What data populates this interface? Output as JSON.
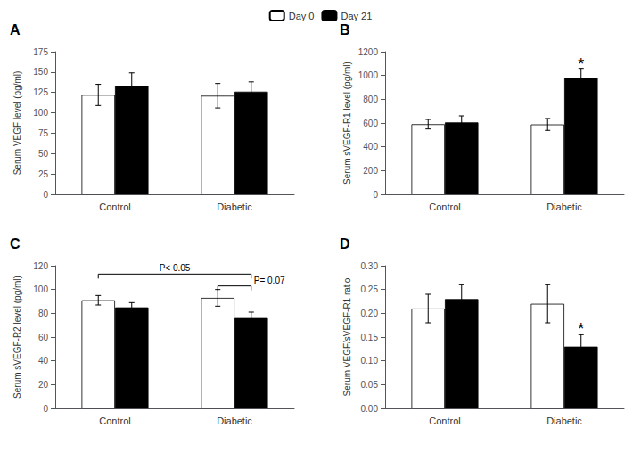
{
  "chart_data": [
    {
      "type": "bar",
      "title": "A",
      "ylabel": "Serum VEGF level (pg/ml)",
      "categories": [
        "Control",
        "Diabetic"
      ],
      "series": [
        {
          "name": "Day 0",
          "color": "#ffffff",
          "values": [
            122,
            121
          ],
          "errors": [
            13,
            15
          ]
        },
        {
          "name": "Day 21",
          "color": "#000000",
          "values": [
            133,
            126
          ],
          "errors": [
            16,
            12
          ]
        }
      ],
      "ylim": [
        0,
        175
      ],
      "yticks": [
        0,
        25,
        50,
        75,
        100,
        125,
        150,
        175
      ],
      "grid": false,
      "legend": "top",
      "annotations": []
    },
    {
      "type": "bar",
      "title": "B",
      "ylabel": "Serum sVEGF-R1 level (pg/ml)",
      "categories": [
        "Control",
        "Diabetic"
      ],
      "series": [
        {
          "name": "Day 0",
          "color": "#ffffff",
          "values": [
            590,
            588
          ],
          "errors": [
            40,
            50
          ]
        },
        {
          "name": "Day 21",
          "color": "#000000",
          "values": [
            605,
            980
          ],
          "errors": [
            55,
            80
          ]
        }
      ],
      "ylim": [
        0,
        1200
      ],
      "yticks": [
        0,
        200,
        400,
        600,
        800,
        1000,
        1200
      ],
      "grid": false,
      "annotations": [
        {
          "text": "*",
          "category": "Diabetic",
          "series": "Day 21",
          "y": 1075
        }
      ]
    },
    {
      "type": "bar",
      "title": "C",
      "ylabel": "Serum sVEGF-R2 level (pg/ml)",
      "categories": [
        "Control",
        "Diabetic"
      ],
      "series": [
        {
          "name": "Day 0",
          "color": "#ffffff",
          "values": [
            91,
            93
          ],
          "errors": [
            4,
            7
          ]
        },
        {
          "name": "Day 21",
          "color": "#000000",
          "values": [
            85,
            76
          ],
          "errors": [
            4,
            5
          ]
        }
      ],
      "ylim": [
        0,
        120
      ],
      "yticks": [
        0,
        20,
        40,
        60,
        80,
        100,
        120
      ],
      "grid": false,
      "annotations": [],
      "brackets": [
        {
          "from": {
            "category": "Control",
            "series": "Day 0"
          },
          "to": {
            "category": "Diabetic",
            "series": "Day 21"
          },
          "y": 113,
          "label": "P< 0.05"
        },
        {
          "from": {
            "category": "Diabetic",
            "series": "Day 0"
          },
          "to": {
            "category": "Diabetic",
            "series": "Day 21"
          },
          "y": 103,
          "label": "P= 0.07"
        }
      ]
    },
    {
      "type": "bar",
      "title": "D",
      "ylabel": "Serum VEGF/sVEGF-R1 ratio",
      "categories": [
        "Control",
        "Diabetic"
      ],
      "series": [
        {
          "name": "Day 0",
          "color": "#ffffff",
          "values": [
            0.21,
            0.22
          ],
          "errors": [
            0.03,
            0.04
          ]
        },
        {
          "name": "Day 21",
          "color": "#000000",
          "values": [
            0.23,
            0.13
          ],
          "errors": [
            0.03,
            0.025
          ]
        }
      ],
      "ylim": [
        0,
        0.3
      ],
      "yticks": [
        {
          "value": 0,
          "label": "0.00"
        },
        0.05,
        {
          "value": 0.1,
          "label": "0.10"
        },
        0.15,
        {
          "value": 0.2,
          "label": "0.20"
        },
        0.25,
        {
          "value": 0.3,
          "label": "0.30"
        }
      ],
      "grid": false,
      "annotations": [
        {
          "text": "*",
          "category": "Diabetic",
          "series": "Day 21",
          "y": 0.162
        }
      ]
    }
  ]
}
